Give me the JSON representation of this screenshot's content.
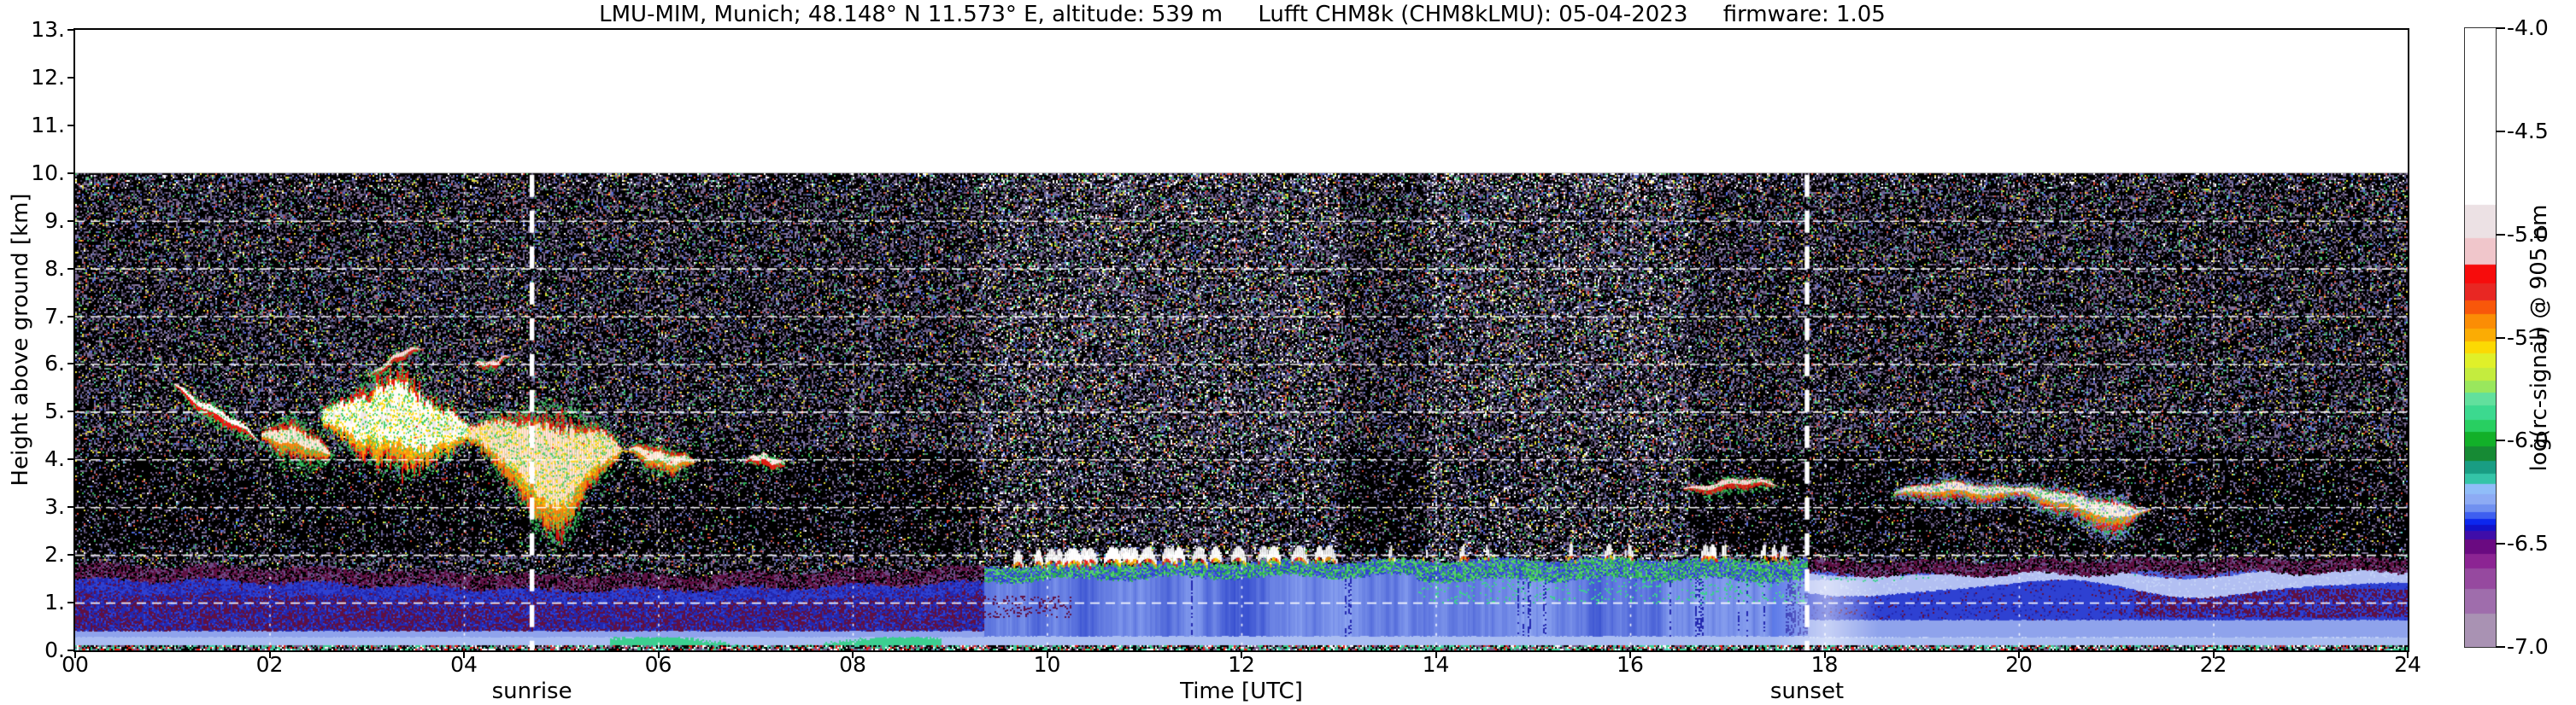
{
  "title": "LMU-MIM, Munich; 48.148° N 11.573° E, altitude: 539 m     Lufft CHM8k (CHM8kLMU): 05-04-2023     firmware: 1.05",
  "x_axis": {
    "label": "Time [UTC]",
    "ticks": [
      "00",
      "02",
      "04",
      "06",
      "08",
      "10",
      "12",
      "14",
      "16",
      "18",
      "20",
      "22",
      "24"
    ]
  },
  "y_axis": {
    "label": "Height above ground [km]",
    "ticks": [
      "13.",
      "12.",
      "11.",
      "10.",
      "9.",
      "8.",
      "7.",
      "6.",
      "5.",
      "4.",
      "3.",
      "2.",
      "1.",
      "0."
    ]
  },
  "annotations": {
    "sunrise": "sunrise",
    "sunset": "sunset"
  },
  "colorbar": {
    "label": "log(rc-signal) @ 905 nm",
    "ticks": [
      "-4.0",
      "-4.5",
      "-5.0",
      "-5.5",
      "-6.0",
      "-6.5",
      "-7.0"
    ]
  },
  "chart_data": {
    "type": "heatmap",
    "title": "LMU-MIM, Munich; 48.148° N 11.573° E, altitude: 539 m     Lufft CHM8k (CHM8kLMU): 05-04-2023     firmware: 1.05",
    "xlabel": "Time [UTC]",
    "ylabel": "Height above ground [km]",
    "x": {
      "min": 0,
      "max": 24,
      "tick_step": 2,
      "unit": "hours UTC"
    },
    "y": {
      "min": 0,
      "max": 13,
      "data_top": 10,
      "tick_step": 1,
      "unit": "km above ground"
    },
    "value": {
      "label": "log(rc-signal) @ 905 nm",
      "min": -7.0,
      "max": -4.0,
      "tick_step": 0.5
    },
    "sunrise_utc": 4.7,
    "sunset_utc": 17.82,
    "grid": {
      "h_lines_km": [
        1,
        2,
        3,
        4,
        5,
        6,
        7,
        8,
        9
      ],
      "v_lines_utc": [
        2,
        4,
        6,
        8,
        10,
        12,
        14,
        16,
        18,
        20,
        22
      ]
    },
    "colormap": [
      {
        "v": -4.0,
        "c": "#ffffff"
      },
      {
        "v": -4.86,
        "c": "#ece1e4"
      },
      {
        "v": -5.02,
        "c": "#f0c6cb"
      },
      {
        "v": -5.15,
        "c": "#f70c0c"
      },
      {
        "v": -5.24,
        "c": "#e82723"
      },
      {
        "v": -5.32,
        "c": "#f8570a"
      },
      {
        "v": -5.39,
        "c": "#fb8d05"
      },
      {
        "v": -5.46,
        "c": "#fbac04"
      },
      {
        "v": -5.52,
        "c": "#fcd903"
      },
      {
        "v": -5.58,
        "c": "#e0f029"
      },
      {
        "v": -5.65,
        "c": "#c4ec3e"
      },
      {
        "v": -5.71,
        "c": "#99e75d"
      },
      {
        "v": -5.77,
        "c": "#62e09d"
      },
      {
        "v": -5.83,
        "c": "#3cd98f"
      },
      {
        "v": -5.9,
        "c": "#28cf61"
      },
      {
        "v": -5.96,
        "c": "#12b029"
      },
      {
        "v": -6.03,
        "c": "#168a34"
      },
      {
        "v": -6.1,
        "c": "#199d83"
      },
      {
        "v": -6.16,
        "c": "#34c4a7"
      },
      {
        "v": -6.21,
        "c": "#90bdf8"
      },
      {
        "v": -6.26,
        "c": "#8dabf4"
      },
      {
        "v": -6.31,
        "c": "#7090f0"
      },
      {
        "v": -6.35,
        "c": "#3e5ff0"
      },
      {
        "v": -6.38,
        "c": "#0c27ee"
      },
      {
        "v": -6.41,
        "c": "#1212c9"
      },
      {
        "v": -6.44,
        "c": "#3f0da9"
      },
      {
        "v": -6.48,
        "c": "#6a0a81"
      },
      {
        "v": -6.55,
        "c": "#8c2493"
      },
      {
        "v": -6.62,
        "c": "#96499f"
      },
      {
        "v": -6.72,
        "c": "#9f6dac"
      },
      {
        "v": -6.84,
        "c": "#a992b3"
      },
      {
        "v": -7.0,
        "c": "#a992b3"
      }
    ],
    "clouds": [
      {
        "t0": 1.02,
        "t1": 1.98,
        "h0": 5.55,
        "h1": 4.25,
        "th": 0.11,
        "style": "thin"
      },
      {
        "t0": 1.92,
        "t1": 2.7,
        "h0": 4.55,
        "h1": 4.15,
        "th": 0.3,
        "style": "med"
      },
      {
        "t0": 2.55,
        "t1": 4.25,
        "h0": 4.85,
        "h1": 4.55,
        "th": 0.6,
        "style": "big",
        "spike": {
          "f": 0.45,
          "amp": 1.05,
          "w": 7
        }
      },
      {
        "t0": 4.05,
        "t1": 5.8,
        "h0": 4.5,
        "h1": 4.15,
        "th": 0.55,
        "style": "big",
        "droop": {
          "f": 0.5,
          "amp": 0.85,
          "w": 5
        }
      },
      {
        "t0": 5.7,
        "t1": 6.45,
        "h0": 4.15,
        "h1": 3.9,
        "th": 0.2,
        "style": "med"
      },
      {
        "t0": 6.9,
        "t1": 7.35,
        "h0": 4.0,
        "h1": 3.95,
        "th": 0.1,
        "style": "thin"
      },
      {
        "t0": 3.02,
        "t1": 3.62,
        "h0": 5.8,
        "h1": 6.45,
        "th": 0.07,
        "style": "thin"
      },
      {
        "t0": 4.1,
        "t1": 4.5,
        "h0": 5.95,
        "h1": 6.15,
        "th": 0.06,
        "style": "thin"
      },
      {
        "t0": 16.55,
        "t1": 17.62,
        "h0": 3.42,
        "h1": 3.52,
        "th": 0.09,
        "style": "thin"
      },
      {
        "t0": 18.72,
        "t1": 20.25,
        "h0": 3.32,
        "h1": 3.38,
        "th": 0.16,
        "style": "mede"
      },
      {
        "t0": 19.95,
        "t1": 21.35,
        "h0": 3.3,
        "h1": 2.92,
        "th": 0.2,
        "style": "mede",
        "droop": {
          "f": 0.75,
          "amp": 0.3,
          "w": 6
        }
      }
    ],
    "boundary_layer": {
      "top_km": [
        [
          0,
          1.72
        ],
        [
          2,
          1.68
        ],
        [
          3.2,
          1.6
        ],
        [
          4.8,
          1.5
        ],
        [
          6.5,
          1.52
        ],
        [
          8.2,
          1.6
        ],
        [
          9.4,
          1.68
        ],
        [
          10.5,
          1.75
        ],
        [
          12,
          1.78
        ],
        [
          14,
          1.82
        ],
        [
          16,
          1.85
        ],
        [
          17.8,
          1.82
        ],
        [
          19,
          1.78
        ],
        [
          21,
          1.82
        ],
        [
          24,
          1.86
        ]
      ],
      "convective_window": [
        9.35,
        17.82
      ],
      "surface_green_window": [
        3.6,
        8.9
      ],
      "evening_bright_window": [
        17.45,
        18.55
      ],
      "maroon_patch_start": 20.6,
      "palette": {
        "maroon": "#5f1042",
        "navy": "#2328b0",
        "blue": "#2e41d2",
        "blue2": "#4b63dd",
        "light": "#8fa3ec",
        "pale": "#aabdf2",
        "paler": "#c2d1f7",
        "teal": "#3ccf90",
        "fringe_purple": "#6d4a86",
        "day_dark": "#2e46cc",
        "day_light": "#90a8f2",
        "green_top": "#2fae57",
        "green_top2": "#54d16c",
        "evening_band": "#b2bff2",
        "violet": "#7d8ff0",
        "white": "#ffffff",
        "orange": "#f79a10",
        "red": "#ea1c12",
        "yellow": "#fcd803",
        "gray_core": "#efe7ea",
        "green": "#37c95e"
      },
      "caps": {
        "dense_window": [
          9.4,
          13.1
        ],
        "dense_count": 26,
        "sparse_window": [
          13.4,
          17.6
        ],
        "sparse_count": 16
      }
    },
    "noise": {
      "density": 0.42,
      "sparse_band_km": [
        2.0,
        4.2
      ],
      "boost_windows": [
        [
          9.3,
          13.0
        ],
        [
          13.9,
          16.6
        ]
      ],
      "palette": {
        "purples": [
          "#6e5d86",
          "#4f4468",
          "#8d7ca4",
          "#3d3552",
          "#7b6b94"
        ],
        "slate": "#5a6ab0",
        "greens": [
          "#2fae57",
          "#5ad06e"
        ],
        "yellow": "#e3da3a",
        "red": "#d64434",
        "blue": "#4a66e8",
        "cyan": "#50cfc0",
        "white": "#ffffff"
      }
    }
  }
}
